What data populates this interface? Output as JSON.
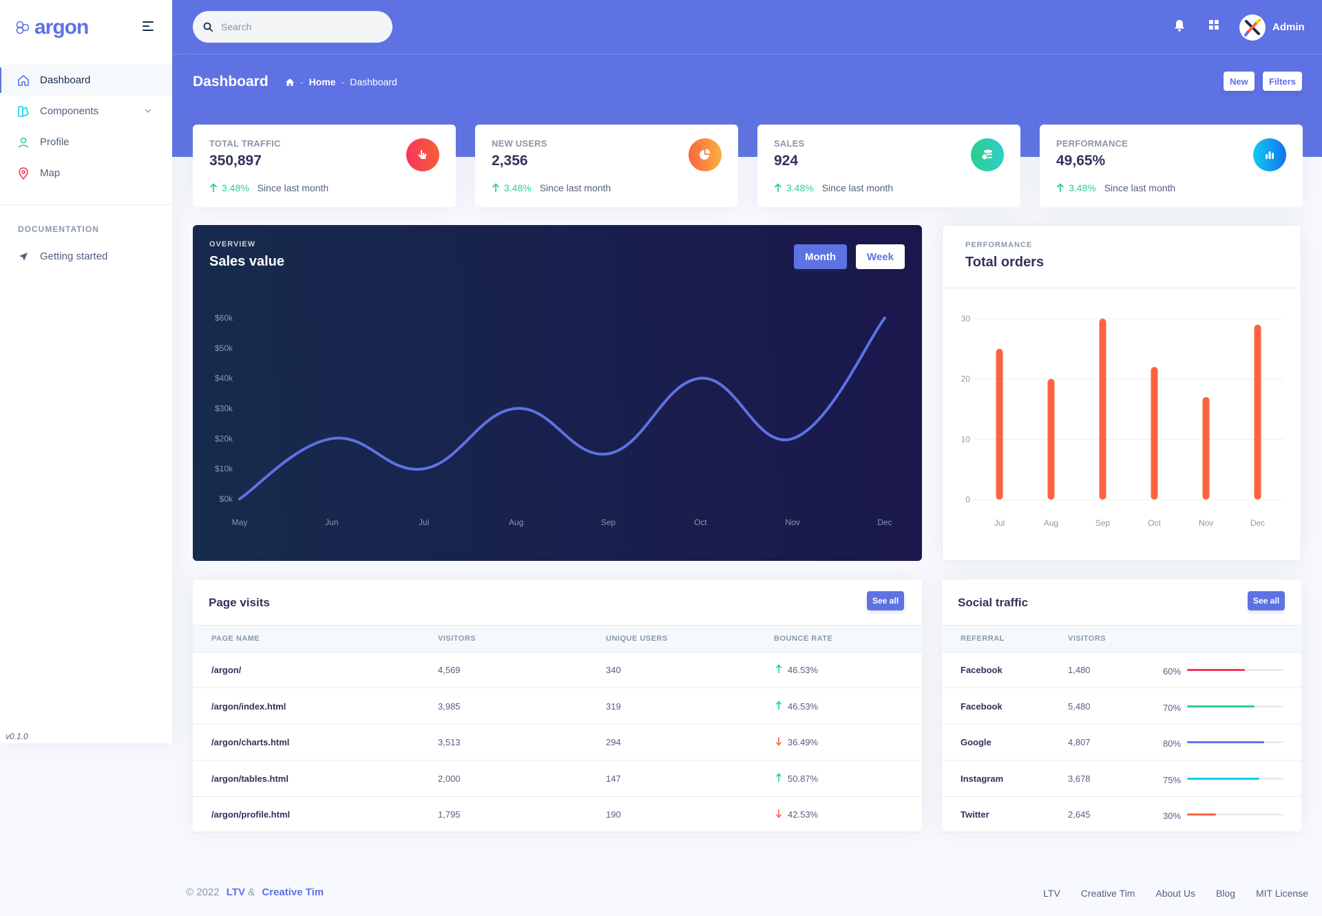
{
  "brand": {
    "name": "argon"
  },
  "sidebar": {
    "items": [
      {
        "label": "Dashboard",
        "icon": "home-icon",
        "color": "#5e72e4"
      },
      {
        "label": "Components",
        "icon": "components-icon",
        "color": "#11cdef"
      },
      {
        "label": "Profile",
        "icon": "profile-icon",
        "color": "#2dce89"
      },
      {
        "label": "Map",
        "icon": "map-pin-icon",
        "color": "#f5365c"
      }
    ],
    "doc_heading": "DOCUMENTATION",
    "doc_items": [
      {
        "label": "Getting started",
        "icon": "rocket-icon"
      }
    ],
    "version": "v0.1.0"
  },
  "topbar": {
    "search_placeholder": "Search",
    "user_name": "Admin"
  },
  "header": {
    "title": "Dashboard",
    "breadcrumb": [
      "Home",
      "Dashboard"
    ],
    "buttons": {
      "new": "New",
      "filters": "Filters"
    }
  },
  "stats": [
    {
      "label": "TOTAL TRAFFIC",
      "value": "350,897",
      "change": "3.48%",
      "since": "Since last month",
      "color": "#f5365c",
      "icon": "hand-pointer-icon"
    },
    {
      "label": "NEW USERS",
      "value": "2,356",
      "change": "3.48%",
      "since": "Since last month",
      "color": "#fb6340",
      "icon": "pie-chart-icon"
    },
    {
      "label": "SALES",
      "value": "924",
      "change": "3.48%",
      "since": "Since last month",
      "color": "#2dce89",
      "icon": "coins-icon"
    },
    {
      "label": "PERFORMANCE",
      "value": "49,65%",
      "change": "3.48%",
      "since": "Since last month",
      "color": "#11cdef",
      "icon": "bar-chart-icon"
    }
  ],
  "sales_card": {
    "overline": "OVERVIEW",
    "title": "Sales value",
    "toggle_month": "Month",
    "toggle_week": "Week"
  },
  "orders_card": {
    "overline": "PERFORMANCE",
    "title": "Total orders"
  },
  "chart_data": [
    {
      "type": "line",
      "categories": [
        "May",
        "Jun",
        "Jul",
        "Aug",
        "Sep",
        "Oct",
        "Nov",
        "Dec"
      ],
      "values": [
        0,
        20,
        10,
        30,
        15,
        40,
        20,
        60
      ],
      "y_ticks": [
        "$0k",
        "$10k",
        "$20k",
        "$30k",
        "$40k",
        "$50k",
        "$60k"
      ],
      "ylim": [
        0,
        60
      ],
      "color": "#5e72e4",
      "grid": false
    },
    {
      "type": "bar",
      "categories": [
        "Jul",
        "Aug",
        "Sep",
        "Oct",
        "Nov",
        "Dec"
      ],
      "values": [
        25,
        20,
        30,
        22,
        17,
        29
      ],
      "y_ticks": [
        "0",
        "10",
        "20",
        "30"
      ],
      "ylim": [
        0,
        30
      ],
      "color": "#fb6340",
      "grid": true
    }
  ],
  "page_visits": {
    "title": "Page visits",
    "see_all": "See all",
    "columns": [
      "PAGE NAME",
      "VISITORS",
      "UNIQUE USERS",
      "BOUNCE RATE"
    ],
    "rows": [
      {
        "page": "/argon/",
        "visitors": "4,569",
        "unique": "340",
        "bounce": "46.53%",
        "trend": "up"
      },
      {
        "page": "/argon/index.html",
        "visitors": "3,985",
        "unique": "319",
        "bounce": "46.53%",
        "trend": "up"
      },
      {
        "page": "/argon/charts.html",
        "visitors": "3,513",
        "unique": "294",
        "bounce": "36.49%",
        "trend": "down"
      },
      {
        "page": "/argon/tables.html",
        "visitors": "2,000",
        "unique": "147",
        "bounce": "50.87%",
        "trend": "up"
      },
      {
        "page": "/argon/profile.html",
        "visitors": "1,795",
        "unique": "190",
        "bounce": "42.53%",
        "trend": "down"
      }
    ]
  },
  "social_traffic": {
    "title": "Social traffic",
    "see_all": "See all",
    "columns": [
      "REFERRAL",
      "VISITORS"
    ],
    "rows": [
      {
        "referral": "Facebook",
        "visitors": "1,480",
        "percent": "60%",
        "value": 60,
        "color": "#f5365c"
      },
      {
        "referral": "Facebook",
        "visitors": "5,480",
        "percent": "70%",
        "value": 70,
        "color": "#2dce89"
      },
      {
        "referral": "Google",
        "visitors": "4,807",
        "percent": "80%",
        "value": 80,
        "color": "#5e72e4"
      },
      {
        "referral": "Instagram",
        "visitors": "3,678",
        "percent": "75%",
        "value": 75,
        "color": "#11cdef"
      },
      {
        "referral": "Twitter",
        "visitors": "2,645",
        "percent": "30%",
        "value": 30,
        "color": "#fb6340"
      }
    ]
  },
  "footer": {
    "copyright": "© 2022",
    "author1": "LTV",
    "amp": "&",
    "author2": "Creative Tim",
    "links": [
      "LTV",
      "Creative Tim",
      "About Us",
      "Blog",
      "MIT License"
    ]
  }
}
